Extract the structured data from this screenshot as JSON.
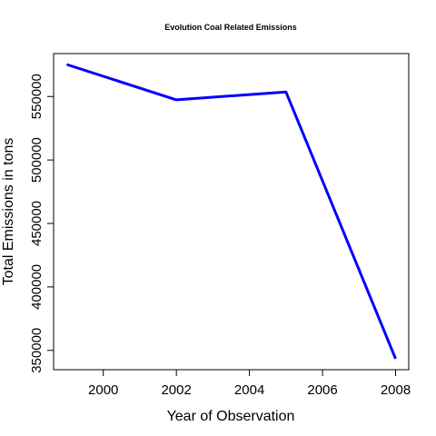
{
  "chart_data": {
    "type": "line",
    "title": "Evolution Coal Related Emissions",
    "xlabel": "Year of Observation",
    "ylabel": "Total Emissions in tons",
    "x": [
      1999,
      2002,
      2005,
      2008
    ],
    "series": [
      {
        "values": [
          575207,
          547380,
          553549,
          343432
        ],
        "color": "#0000ff"
      }
    ],
    "xticks": [
      2000,
      2002,
      2004,
      2006,
      2008
    ],
    "xtick_labels": [
      "2000",
      "2002",
      "2004",
      "2006",
      "2008"
    ],
    "yticks": [
      350000,
      400000,
      450000,
      500000,
      550000
    ],
    "ytick_labels": [
      "350000",
      "400000",
      "450000",
      "500000",
      "550000"
    ],
    "xlim": [
      1998.64,
      2008.36
    ],
    "ylim": [
      334800,
      583800
    ],
    "grid": false,
    "legend": "none"
  }
}
